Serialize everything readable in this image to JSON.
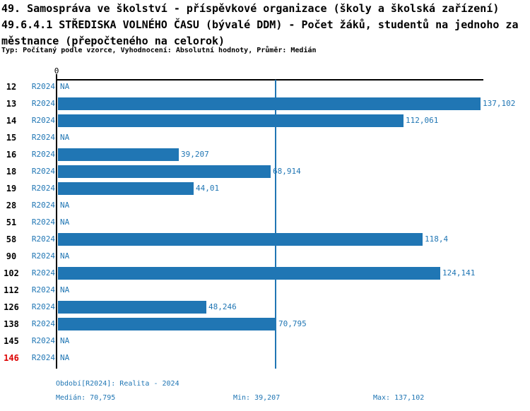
{
  "header": {
    "title_line1": "49. Samospráva ve školství - příspěvkové organizace (školy a školská zařízení)",
    "title_line2": "49.6.4.1 STŘEDISKA VOLNÉHO ČASU (bývalé DDM) - Počet žáků, studentů na jednoho za",
    "title_line3": "městnance (přepočteného na celorok)",
    "meta": "Typ: Počítaný podle vzorce, Vyhodnocení: Absolutní hodnoty, Průměr: Medián"
  },
  "chart_data": {
    "type": "bar",
    "orientation": "horizontal",
    "title": "49.6.4.1 STŘEDISKA VOLNÉHO ČASU (bývalé DDM) - Počet žáků, studentů na jednoho zaměstnance (přepočteného na celorok)",
    "xlabel": "",
    "ylabel": "",
    "axis_zero_label": "0",
    "xlim": [
      0,
      138.5
    ],
    "grid": false,
    "legend_position": "none",
    "period_series_label": "R2024",
    "categories": [
      "12",
      "13",
      "14",
      "15",
      "16",
      "18",
      "19",
      "28",
      "51",
      "58",
      "90",
      "102",
      "112",
      "126",
      "138",
      "145",
      "146"
    ],
    "rows": [
      {
        "id": "12",
        "period": "R2024",
        "value": null,
        "label": "NA"
      },
      {
        "id": "13",
        "period": "R2024",
        "value": 137.102,
        "label": "137,102"
      },
      {
        "id": "14",
        "period": "R2024",
        "value": 112.061,
        "label": "112,061"
      },
      {
        "id": "15",
        "period": "R2024",
        "value": null,
        "label": "NA"
      },
      {
        "id": "16",
        "period": "R2024",
        "value": 39.207,
        "label": "39,207"
      },
      {
        "id": "18",
        "period": "R2024",
        "value": 68.914,
        "label": "68,914"
      },
      {
        "id": "19",
        "period": "R2024",
        "value": 44.01,
        "label": "44,01"
      },
      {
        "id": "28",
        "period": "R2024",
        "value": null,
        "label": "NA"
      },
      {
        "id": "51",
        "period": "R2024",
        "value": null,
        "label": "NA"
      },
      {
        "id": "58",
        "period": "R2024",
        "value": 118.4,
        "label": "118,4"
      },
      {
        "id": "90",
        "period": "R2024",
        "value": null,
        "label": "NA"
      },
      {
        "id": "102",
        "period": "R2024",
        "value": 124.141,
        "label": "124,141"
      },
      {
        "id": "112",
        "period": "R2024",
        "value": null,
        "label": "NA"
      },
      {
        "id": "126",
        "period": "R2024",
        "value": 48.246,
        "label": "48,246"
      },
      {
        "id": "138",
        "period": "R2024",
        "value": 70.795,
        "label": "70,795"
      },
      {
        "id": "145",
        "period": "R2024",
        "value": null,
        "label": "NA"
      },
      {
        "id": "146",
        "period": "R2024",
        "value": null,
        "label": "NA",
        "highlight": "red"
      }
    ],
    "median_line_value": 70.795,
    "stats": {
      "median": 70.795,
      "min": 39.207,
      "max": 137.102
    },
    "colors": {
      "bar": "#2076b4",
      "text_blue": "#2076b4",
      "axis": "#000000",
      "highlight_red": "#dd0000"
    }
  },
  "footer": {
    "period_info": "Období[R2024]: Realita - 2024",
    "median": "Medián: 70,795",
    "min": "Min: 39,207",
    "max": "Max: 137,102"
  }
}
